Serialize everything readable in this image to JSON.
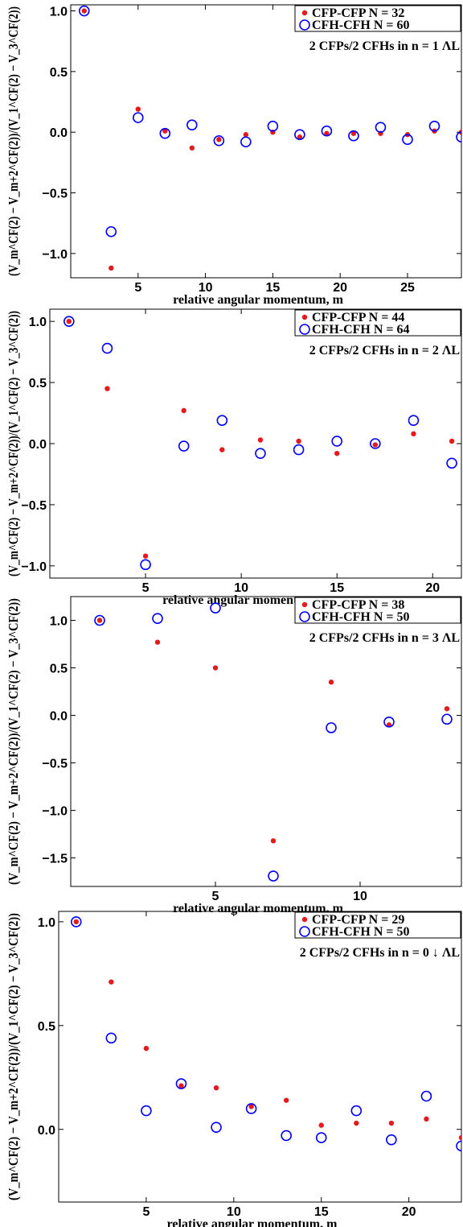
{
  "colors": {
    "cfp": "#e41a1c",
    "cfh": "#0000ff",
    "axis": "#000000"
  },
  "chart_data": [
    {
      "type": "scatter",
      "xlabel": "relative angular momentum, m",
      "ylabel": "(V_m^CF(2) − V_m+2^CF(2))/(V_1^CF(2) − V_3^CF(2))",
      "annotation": "2 CFPs/2 CFHs in n = 1 ΛL",
      "xlim": [
        0,
        29
      ],
      "ylim": [
        -1.2,
        1.05
      ],
      "xticks": [
        5,
        10,
        15,
        20,
        25
      ],
      "yticks": [
        1.0,
        0.5,
        0.0,
        -0.5,
        -1.0
      ],
      "xtick_labels": [
        "5",
        "10",
        "15",
        "20",
        "25"
      ],
      "ytick_labels": [
        "1.0",
        "0.5",
        "0.0",
        "−0.5",
        "−1.0"
      ],
      "legend_position": "top-right",
      "series": [
        {
          "name": "CFP-CFP N = 32",
          "marker": "dot",
          "x": [
            1,
            3,
            5,
            7,
            9,
            11,
            13,
            15,
            17,
            19,
            21,
            23,
            25,
            27,
            29
          ],
          "y": [
            1.0,
            -1.12,
            0.19,
            0.01,
            -0.13,
            -0.06,
            -0.02,
            0.0,
            -0.04,
            -0.01,
            -0.01,
            -0.01,
            -0.02,
            0.01,
            0.0
          ]
        },
        {
          "name": "CFH-CFH N = 60",
          "marker": "ring",
          "x": [
            1,
            3,
            5,
            7,
            9,
            11,
            13,
            15,
            17,
            19,
            21,
            23,
            25,
            27,
            29
          ],
          "y": [
            1.0,
            -0.82,
            0.12,
            -0.01,
            0.06,
            -0.07,
            -0.08,
            0.05,
            -0.02,
            0.01,
            -0.03,
            0.04,
            -0.06,
            0.05,
            -0.04
          ]
        }
      ]
    },
    {
      "type": "scatter",
      "xlabel": "relative angular momentum, m",
      "ylabel": "(V_m^CF(2) − V_m+2^CF(2))/(V_1^CF(2) − V_3^CF(2))",
      "annotation": "2 CFPs/2 CFHs in n = 2 ΛL",
      "xlim": [
        0,
        21.5
      ],
      "ylim": [
        -1.1,
        1.1
      ],
      "xticks": [
        5,
        10,
        15,
        20
      ],
      "yticks": [
        1.0,
        0.5,
        0.0,
        -0.5,
        -1.0
      ],
      "xtick_labels": [
        "5",
        "10",
        "15",
        "20"
      ],
      "ytick_labels": [
        "1.0",
        "0.5",
        "0.0",
        "−0.5",
        "−1.0"
      ],
      "legend_position": "top-right",
      "series": [
        {
          "name": "CFP-CFP N = 44",
          "marker": "dot",
          "x": [
            1,
            3,
            5,
            7,
            9,
            11,
            13,
            15,
            17,
            19,
            21
          ],
          "y": [
            1.0,
            0.45,
            -0.92,
            0.27,
            -0.05,
            0.03,
            0.02,
            -0.08,
            -0.01,
            0.08,
            0.02
          ]
        },
        {
          "name": "CFH-CFH N = 64",
          "marker": "ring",
          "x": [
            1,
            3,
            5,
            7,
            9,
            11,
            13,
            15,
            17,
            19,
            21
          ],
          "y": [
            1.0,
            0.78,
            -0.99,
            -0.02,
            0.19,
            -0.08,
            -0.05,
            0.02,
            0.0,
            0.19,
            -0.16
          ]
        }
      ]
    },
    {
      "type": "scatter",
      "xlabel": "relative angular momentum, m",
      "ylabel": "(V_m^CF(2) − V_m+2^CF(2))/(V_1^CF(2) − V_3^CF(2))",
      "annotation": "2 CFPs/2 CFHs in n = 3 ΛL",
      "xlim": [
        0,
        13.5
      ],
      "ylim": [
        -1.8,
        1.25
      ],
      "xticks": [
        5,
        10
      ],
      "yticks": [
        1.0,
        0.5,
        0.0,
        -0.5,
        -1.0,
        -1.5
      ],
      "xtick_labels": [
        "5",
        "10"
      ],
      "ytick_labels": [
        "1.0",
        "0.5",
        "0.0",
        "−0.5",
        "−1.0",
        "−1.5"
      ],
      "legend_position": "top-right",
      "series": [
        {
          "name": "CFP-CFP N = 38",
          "marker": "dot",
          "x": [
            1,
            3,
            5,
            7,
            9,
            11,
            13
          ],
          "y": [
            1.0,
            0.77,
            0.5,
            -1.32,
            0.35,
            -0.1,
            0.07
          ]
        },
        {
          "name": "CFH-CFH N = 50",
          "marker": "ring",
          "x": [
            1,
            3,
            5,
            7,
            9,
            11,
            13
          ],
          "y": [
            1.0,
            1.02,
            1.13,
            -1.69,
            -0.13,
            -0.07,
            -0.04
          ]
        }
      ]
    },
    {
      "type": "scatter",
      "xlabel": "relative angular momentum, m",
      "ylabel": "(V_m^CF(2) − V_m+2^CF(2))/(V_1^CF(2) − V_3^CF(2))",
      "annotation": "2 CFPs/2 CFHs in n = 0 ↓  ΛL",
      "xlim": [
        0,
        23
      ],
      "ylim": [
        -0.35,
        1.05
      ],
      "xticks": [
        5,
        10,
        15,
        20
      ],
      "yticks": [
        1.0,
        0.5,
        0.0
      ],
      "xtick_labels": [
        "5",
        "10",
        "15",
        "20"
      ],
      "ytick_labels": [
        "1.0",
        "0.5",
        "0.0"
      ],
      "legend_position": "top-right",
      "series": [
        {
          "name": "CFP-CFP N = 29",
          "marker": "dot",
          "x": [
            1,
            3,
            5,
            7,
            9,
            11,
            13,
            15,
            17,
            19,
            21,
            23
          ],
          "y": [
            1.0,
            0.71,
            0.39,
            0.21,
            0.2,
            0.11,
            0.14,
            0.02,
            0.03,
            0.03,
            0.05,
            -0.04
          ]
        },
        {
          "name": "CFH-CFH N = 50",
          "marker": "ring",
          "x": [
            1,
            3,
            5,
            7,
            9,
            11,
            13,
            15,
            17,
            19,
            21,
            23
          ],
          "y": [
            1.0,
            0.44,
            0.09,
            0.22,
            0.01,
            0.1,
            -0.03,
            -0.04,
            0.09,
            -0.05,
            0.16,
            -0.08
          ]
        }
      ]
    }
  ]
}
